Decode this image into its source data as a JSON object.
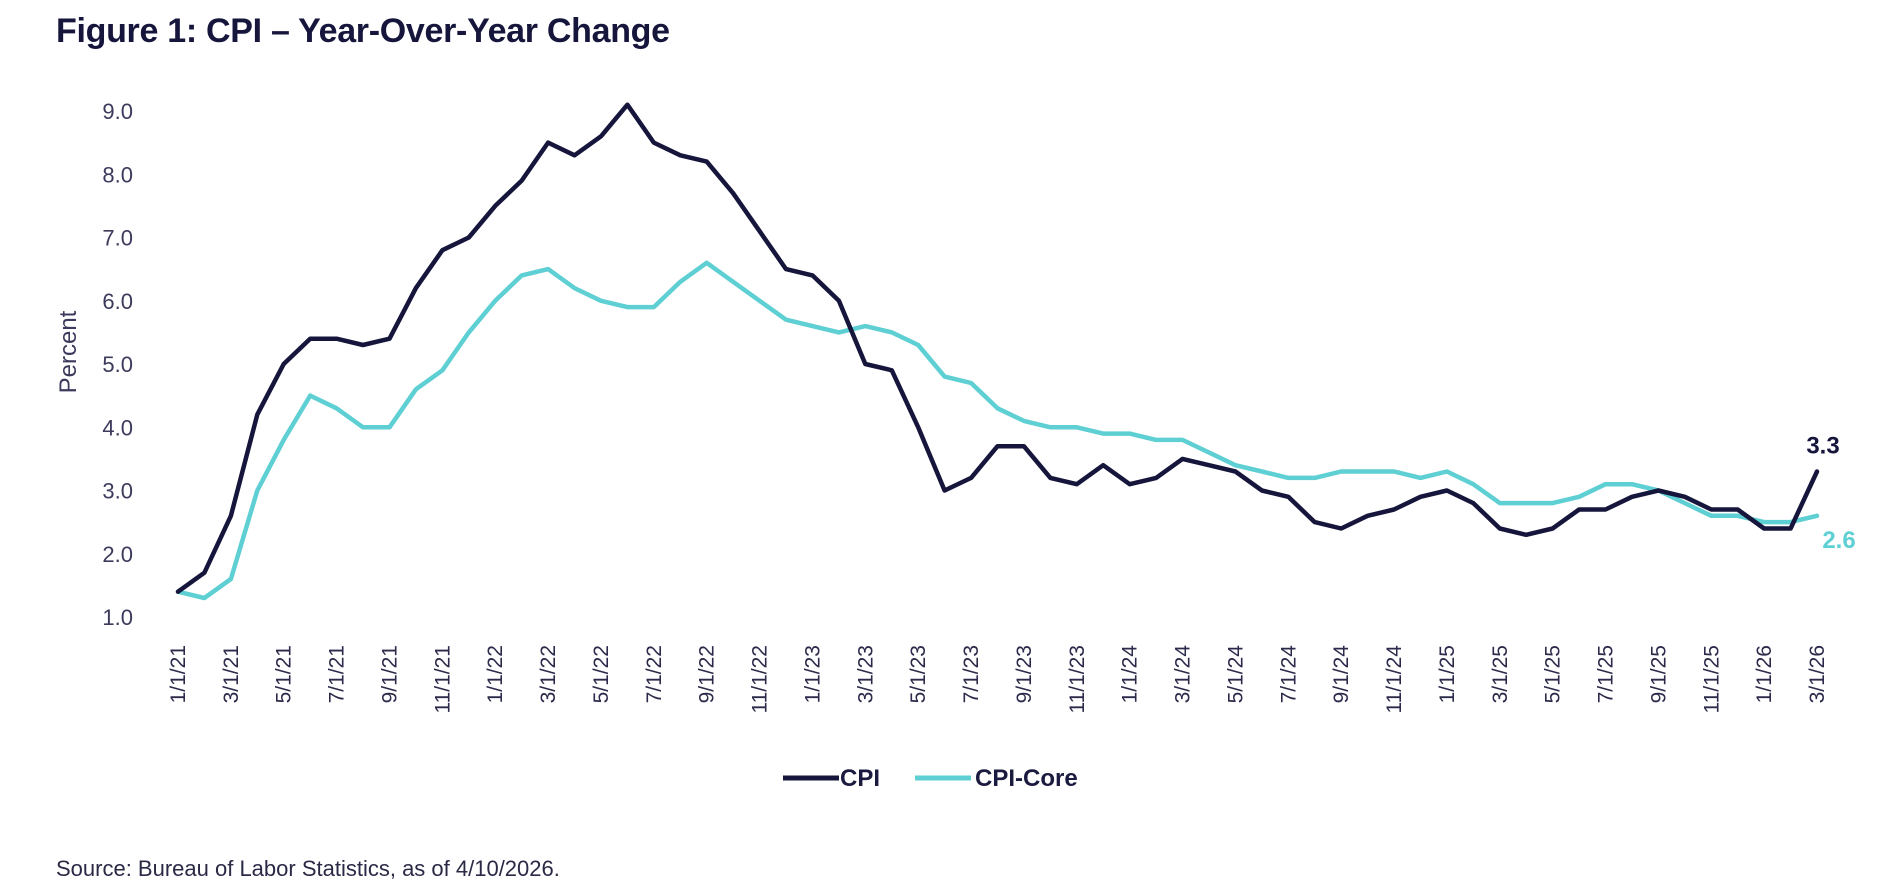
{
  "header": {
    "title": "Figure 1: CPI – Year-Over-Year Change"
  },
  "footer": {
    "source": "Source: Bureau of Labor Statistics, as of 4/10/2026."
  },
  "chart_data": {
    "type": "line",
    "title": "Figure 1: CPI – Year-Over-Year Change",
    "xlabel": "",
    "ylabel": "Percent",
    "ylim": [
      1.0,
      9.0
    ],
    "yticks": [
      "1.0",
      "2.0",
      "3.0",
      "4.0",
      "5.0",
      "6.0",
      "7.0",
      "8.0",
      "9.0"
    ],
    "grid": false,
    "legend_position": "bottom-center",
    "x": [
      "1/1/21",
      "2/1/21",
      "3/1/21",
      "4/1/21",
      "5/1/21",
      "6/1/21",
      "7/1/21",
      "8/1/21",
      "9/1/21",
      "10/1/21",
      "11/1/21",
      "12/1/21",
      "1/1/22",
      "2/1/22",
      "3/1/22",
      "4/1/22",
      "5/1/22",
      "6/1/22",
      "7/1/22",
      "8/1/22",
      "9/1/22",
      "10/1/22",
      "11/1/22",
      "12/1/22",
      "1/1/23",
      "2/1/23",
      "3/1/23",
      "4/1/23",
      "5/1/23",
      "6/1/23",
      "7/1/23",
      "8/1/23",
      "9/1/23",
      "10/1/23",
      "11/1/23",
      "12/1/23",
      "1/1/24",
      "2/1/24",
      "3/1/24",
      "4/1/24",
      "5/1/24",
      "6/1/24",
      "7/1/24",
      "8/1/24",
      "9/1/24",
      "10/1/24",
      "11/1/24",
      "12/1/24",
      "1/1/25",
      "2/1/25",
      "3/1/25",
      "4/1/25",
      "5/1/25",
      "6/1/25",
      "7/1/25",
      "8/1/25",
      "9/1/25",
      "10/1/25",
      "11/1/25",
      "12/1/25",
      "1/1/26",
      "2/1/26",
      "3/1/26"
    ],
    "xtick_labels": [
      "1/1/21",
      "3/1/21",
      "5/1/21",
      "7/1/21",
      "9/1/21",
      "11/1/21",
      "1/1/22",
      "3/1/22",
      "5/1/22",
      "7/1/22",
      "9/1/22",
      "11/1/22",
      "1/1/23",
      "3/1/23",
      "5/1/23",
      "7/1/23",
      "9/1/23",
      "11/1/23",
      "1/1/24",
      "3/1/24",
      "5/1/24",
      "7/1/24",
      "9/1/24",
      "11/1/24",
      "1/1/25",
      "3/1/25",
      "5/1/25",
      "7/1/25",
      "9/1/25",
      "11/1/25",
      "1/1/26",
      "3/1/26"
    ],
    "series": [
      {
        "name": "CPI",
        "color": "#16153b",
        "values": [
          1.4,
          1.7,
          2.6,
          4.2,
          5.0,
          5.4,
          5.4,
          5.3,
          5.4,
          6.2,
          6.8,
          7.0,
          7.5,
          7.9,
          8.5,
          8.3,
          8.6,
          9.1,
          8.5,
          8.3,
          8.2,
          7.7,
          7.1,
          6.5,
          6.4,
          6.0,
          5.0,
          4.9,
          4.0,
          3.0,
          3.2,
          3.7,
          3.7,
          3.2,
          3.1,
          3.4,
          3.1,
          3.2,
          3.5,
          3.4,
          3.3,
          3.0,
          2.9,
          2.5,
          2.4,
          2.6,
          2.7,
          2.9,
          3.0,
          2.8,
          2.4,
          2.3,
          2.4,
          2.7,
          2.7,
          2.9,
          3.0,
          2.9,
          2.7,
          2.7,
          2.4,
          2.4,
          3.3
        ]
      },
      {
        "name": "CPI-Core",
        "color": "#5ecfd3",
        "values": [
          1.4,
          1.3,
          1.6,
          3.0,
          3.8,
          4.5,
          4.3,
          4.0,
          4.0,
          4.6,
          4.9,
          5.5,
          6.0,
          6.4,
          6.5,
          6.2,
          6.0,
          5.9,
          5.9,
          6.3,
          6.6,
          6.3,
          6.0,
          5.7,
          5.6,
          5.5,
          5.6,
          5.5,
          5.3,
          4.8,
          4.7,
          4.3,
          4.1,
          4.0,
          4.0,
          3.9,
          3.9,
          3.8,
          3.8,
          3.6,
          3.4,
          3.3,
          3.2,
          3.2,
          3.3,
          3.3,
          3.3,
          3.2,
          3.3,
          3.1,
          2.8,
          2.8,
          2.8,
          2.9,
          3.1,
          3.1,
          3.0,
          2.8,
          2.6,
          2.6,
          2.5,
          2.5,
          2.6
        ]
      }
    ],
    "annotations": [
      {
        "series": "CPI",
        "text": "3.3",
        "color": "#16153b"
      },
      {
        "series": "CPI-Core",
        "text": "2.6",
        "color": "#5ecfd3"
      }
    ]
  }
}
